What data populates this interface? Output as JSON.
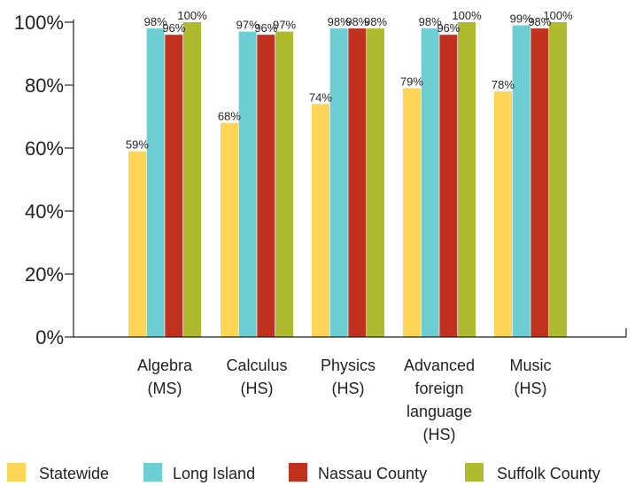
{
  "chart_data": {
    "type": "bar",
    "categories": [
      [
        "Algebra",
        "(MS)"
      ],
      [
        "Calculus",
        "(HS)"
      ],
      [
        "Physics",
        "(HS)"
      ],
      [
        "Advanced",
        "foreign",
        "language",
        "(HS)"
      ],
      [
        "Music",
        "(HS)"
      ]
    ],
    "series": [
      {
        "name": "Statewide",
        "color": "#ffd557",
        "values": [
          59,
          68,
          74,
          79,
          78
        ],
        "labels": [
          "59%",
          "68%",
          "74%",
          "79%",
          "78%"
        ]
      },
      {
        "name": "Long Island",
        "color": "#6ccdd3",
        "values": [
          98,
          97,
          98,
          98,
          99
        ],
        "labels": [
          "98%",
          "97%",
          "98%",
          "98%",
          "99%"
        ]
      },
      {
        "name": "Nassau County",
        "color": "#c0311f",
        "values": [
          96,
          96,
          98,
          96,
          98
        ],
        "labels": [
          "96%",
          "96%",
          "98%",
          "96%",
          "98%"
        ]
      },
      {
        "name": "Suffolk County",
        "color": "#afbb2e",
        "values": [
          100,
          97,
          98,
          100,
          100
        ],
        "labels": [
          "100%",
          "97%",
          "98%",
          "100%",
          "100%"
        ]
      }
    ],
    "y_ticks": [
      "0%",
      "20%",
      "40%",
      "60%",
      "80%",
      "100%"
    ],
    "ylim": [
      0,
      100
    ],
    "grid": false,
    "legend_position": "bottom"
  }
}
